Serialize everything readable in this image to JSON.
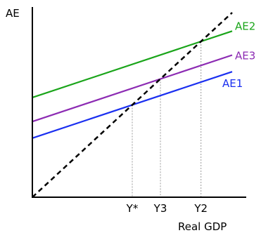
{
  "chart_data": {
    "type": "line",
    "title": "",
    "xlabel": "Real GDP",
    "ylabel": "AE",
    "xlim": [
      0,
      100
    ],
    "ylim": [
      0,
      100
    ],
    "grid": false,
    "legend": "none",
    "series": [
      {
        "name": "AE2",
        "x": [
          0,
          100
        ],
        "y": [
          54,
          90
        ],
        "color": "#1aa51a",
        "style": "solid"
      },
      {
        "name": "AE3",
        "x": [
          0,
          100
        ],
        "y": [
          41,
          77
        ],
        "color": "#8c2bb3",
        "style": "solid"
      },
      {
        "name": "AE1",
        "x": [
          0,
          100
        ],
        "y": [
          32,
          68
        ],
        "color": "#1a2ff0",
        "style": "solid"
      },
      {
        "name": "",
        "x": [
          0,
          100
        ],
        "y": [
          0,
          100
        ],
        "color": "#000000",
        "style": "dashed"
      }
    ],
    "markers": [
      {
        "label": "Y*",
        "x": 50,
        "y": 50
      },
      {
        "label": "Y3",
        "x": 64.1,
        "y": 64.1
      },
      {
        "label": "Y2",
        "x": 84.4,
        "y": 84.4
      }
    ]
  }
}
